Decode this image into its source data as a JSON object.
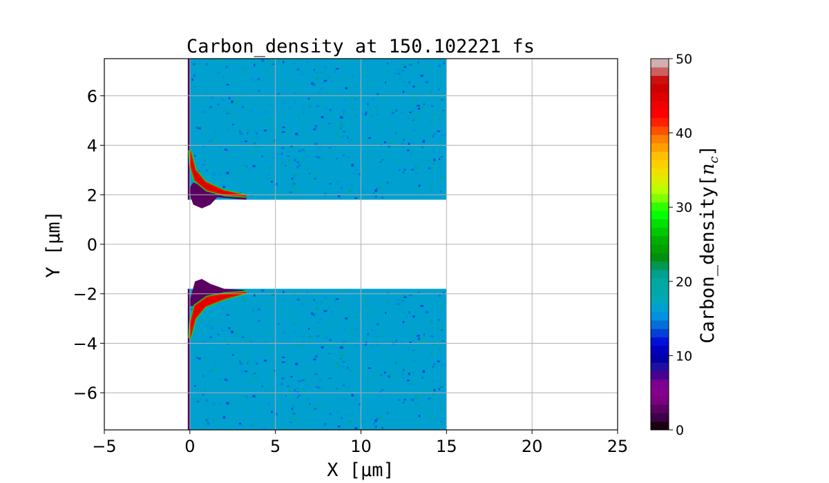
{
  "chart_data": {
    "type": "heatmap",
    "title": "Carbon_density at 150.102221 fs",
    "xlabel": "X [μm]",
    "ylabel": "Y [μm]",
    "xlim": [
      -5,
      25
    ],
    "ylim": [
      -7.5,
      7.5
    ],
    "xticks": [
      -5,
      0,
      5,
      10,
      15,
      20,
      25
    ],
    "yticks": [
      -6,
      -4,
      -2,
      0,
      2,
      4,
      6
    ],
    "xtick_labels": [
      "−5",
      "0",
      "5",
      "10",
      "15",
      "20",
      "25"
    ],
    "ytick_labels": [
      "−6",
      "−4",
      "−2",
      "0",
      "2",
      "4",
      "6"
    ],
    "grid": true,
    "colorbar": {
      "label": "Carbon_density[n_c]",
      "label_main": "Carbon_density[",
      "label_sym": "n",
      "label_sub": "c",
      "label_end": "]",
      "range": [
        0,
        50
      ],
      "ticks": [
        0,
        10,
        20,
        30,
        40,
        50
      ],
      "tick_labels": [
        "0",
        "10",
        "20",
        "30",
        "40",
        "50"
      ],
      "colors": [
        "#1a0010",
        "#3c0048",
        "#5a0060",
        "#7a0080",
        "#84008c",
        "#7a0090",
        "#4a0090",
        "#2010a0",
        "#0000a8",
        "#0000c0",
        "#0010d8",
        "#0040d8",
        "#0070d8",
        "#0090e0",
        "#00a0d0",
        "#00a8b8",
        "#00a8a8",
        "#00a8a0",
        "#00a090",
        "#009850",
        "#009010",
        "#00a000",
        "#00b000",
        "#00c800",
        "#00e000",
        "#00ff00",
        "#30ff00",
        "#80ff00",
        "#b8ff00",
        "#d8f000",
        "#f0e000",
        "#ffd000",
        "#ffc000",
        "#ffa000",
        "#ff8000",
        "#ff5000",
        "#ff2000",
        "#ff0000",
        "#f00000",
        "#e00000",
        "#d00000",
        "#cc1010",
        "#cc6060",
        "#d0b0b0"
      ]
    },
    "regions": [
      {
        "name": "upper-target",
        "density": 17,
        "x": [
          0,
          15
        ],
        "y": [
          1.8,
          7.5
        ]
      },
      {
        "name": "lower-target",
        "density": 17,
        "x": [
          0,
          15
        ],
        "y": [
          -7.5,
          -1.8
        ]
      }
    ],
    "features": [
      {
        "name": "upper-underdense-blob",
        "density": 3,
        "polygon": [
          [
            -0.1,
            2.2
          ],
          [
            0.2,
            1.6
          ],
          [
            0.7,
            1.45
          ],
          [
            1.2,
            1.6
          ],
          [
            1.6,
            1.9
          ],
          [
            3.3,
            1.8
          ],
          [
            3.3,
            1.95
          ],
          [
            1.2,
            2.2
          ],
          [
            0.2,
            2.5
          ]
        ]
      },
      {
        "name": "upper-shock",
        "density": 45,
        "polygon": [
          [
            0,
            3.8
          ],
          [
            0.3,
            3.0
          ],
          [
            0.9,
            2.5
          ],
          [
            2,
            2.15
          ],
          [
            3.3,
            1.95
          ],
          [
            2.1,
            2.0
          ],
          [
            1,
            2.2
          ],
          [
            0.3,
            2.6
          ],
          [
            0.05,
            3.2
          ]
        ]
      },
      {
        "name": "lower-underdense-blob",
        "density": 3,
        "polygon": [
          [
            -0.1,
            -2.5
          ],
          [
            0.3,
            -1.5
          ],
          [
            0.7,
            -1.4
          ],
          [
            1.2,
            -1.6
          ],
          [
            2,
            -1.8
          ],
          [
            3.3,
            -1.85
          ],
          [
            1.5,
            -2.1
          ],
          [
            0.3,
            -2.5
          ]
        ]
      },
      {
        "name": "lower-shock",
        "density": 45,
        "polygon": [
          [
            0,
            -3.8
          ],
          [
            0.3,
            -3.0
          ],
          [
            0.9,
            -2.5
          ],
          [
            2,
            -2.2
          ],
          [
            3.3,
            -1.95
          ],
          [
            2.1,
            -2.0
          ],
          [
            1,
            -2.15
          ],
          [
            0.3,
            -2.5
          ],
          [
            0.05,
            -3.2
          ]
        ]
      }
    ]
  }
}
